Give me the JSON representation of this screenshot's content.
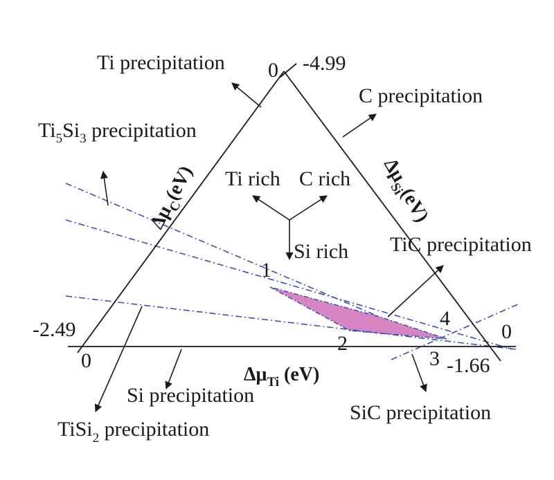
{
  "diagram": {
    "corner_values": {
      "top_zero": "0",
      "top_value": "-4.99",
      "left_value": "-2.49",
      "left_zero": "0",
      "right_zero": "0",
      "right_value": "-1.66"
    },
    "axes": {
      "ti": {
        "delta": "Δμ",
        "sub": "Ti",
        "unit": " (eV)"
      },
      "c": {
        "delta": "Δμ",
        "sub": "C",
        "unit": "(eV)"
      },
      "si": {
        "delta": "Δμ",
        "sub": "Si",
        "unit": "(eV)"
      }
    },
    "direction_labels": {
      "ti_rich": "Ti rich",
      "c_rich": "C rich",
      "si_rich": "Si rich"
    },
    "points": [
      "1",
      "2",
      "3",
      "4"
    ],
    "precipitation_labels": {
      "ti": "Ti precipitation",
      "c": "C precipitation",
      "ti5si3": {
        "a": "Ti",
        "a_sub": "5",
        "b": "Si",
        "b_sub": "3",
        "rest": " precipitation"
      },
      "tic": "TiC precipitation",
      "si": "Si precipitation",
      "tisi2": {
        "a": "TiSi",
        "a_sub": "2",
        "rest": " precipitation"
      },
      "sic": "SiC precipitation"
    },
    "colors": {
      "region_fill": "#d685c2",
      "boundary_line": "#3b4fb5",
      "frame": "#1a1a1a"
    }
  }
}
